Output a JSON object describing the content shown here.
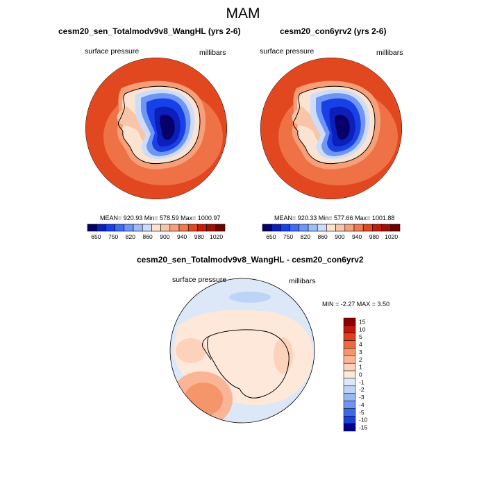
{
  "title": "MAM",
  "panels": [
    {
      "title": "cesm20_sen_Totalmodv9v8_WangHL (yrs 2-6)",
      "left_label": "surface pressure",
      "right_label": "millibars",
      "stats": "MEAN= 920.93  Min= 578.59  Max= 1000.97"
    },
    {
      "title": "cesm20_con6yrv2 (yrs 2-6)",
      "left_label": "surface pressure",
      "right_label": "millibars",
      "stats": "MEAN= 920.33  Min= 577.66  Max= 1001.88"
    }
  ],
  "abs_colorbar": {
    "colors": [
      "#08006a",
      "#0c1fb8",
      "#1840e8",
      "#3d6bf2",
      "#6f96f5",
      "#9ebcf7",
      "#cddcf9",
      "#fbe3d2",
      "#f9c5a8",
      "#f69f78",
      "#f07a4e",
      "#e2481f",
      "#c81a08",
      "#a00f05",
      "#6e0000"
    ],
    "labels": [
      "650",
      "750",
      "820",
      "860",
      "900",
      "940",
      "980",
      "1020"
    ]
  },
  "diff": {
    "title": "cesm20_sen_Totalmodv9v8_WangHL - cesm20_con6yrv2",
    "left_label": "surface pressure",
    "right_label": "millibars",
    "minmax": "MIN =  -2.27 MAX =   3.50",
    "colorbar_colors": [
      "#8b0000",
      "#c0180a",
      "#e0401c",
      "#ee6a3c",
      "#f5956a",
      "#f9b596",
      "#fcd2bb",
      "#fde8da",
      "#dce8f8",
      "#bcd4f6",
      "#97b8f3",
      "#6f96ef",
      "#3e68e6",
      "#1b3fd8",
      "#00008b"
    ],
    "colorbar_labels": [
      "15",
      "10",
      "5",
      "4",
      "3",
      "2",
      "1",
      "0",
      "-1",
      "-2",
      "-3",
      "-4",
      "-5",
      "-10",
      "-15"
    ]
  }
}
